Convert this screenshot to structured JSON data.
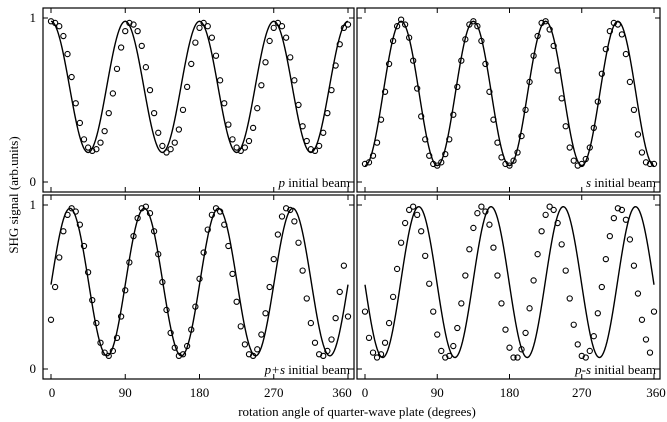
{
  "figure": {
    "ylabel": "SHG signal (arb.units)",
    "xlabel": "rotation angle of quarter-wave plate (degrees)"
  },
  "chart_data": [
    {
      "type": "line",
      "label_main": "p",
      "label_rest": " initial beam",
      "xlim": [
        0,
        360
      ],
      "ylim": [
        0,
        1
      ],
      "x_ticks": [
        "",
        "",
        "",
        "",
        ""
      ],
      "y_ticks": [
        "0",
        "1"
      ],
      "fit": {
        "offset": 0.58,
        "amplitude": 0.4,
        "phase_deg": 0
      },
      "series": [
        {
          "x": [
            0,
            5,
            10,
            15,
            20,
            25,
            30,
            35,
            40,
            45,
            50,
            55,
            60,
            65,
            70,
            75,
            80,
            85,
            90,
            95,
            100,
            105,
            110,
            115,
            120,
            125,
            130,
            135,
            140,
            145,
            150,
            155,
            160,
            165,
            170,
            175,
            180,
            185,
            190,
            195,
            200,
            205,
            210,
            215,
            220,
            225,
            230,
            235,
            240,
            245,
            250,
            255,
            260,
            265,
            270,
            275,
            280,
            285,
            290,
            295,
            300,
            305,
            310,
            315,
            320,
            325,
            330,
            335,
            340,
            345,
            350,
            355,
            360
          ],
          "y": [
            0.98,
            0.97,
            0.95,
            0.89,
            0.78,
            0.64,
            0.48,
            0.36,
            0.26,
            0.21,
            0.19,
            0.2,
            0.24,
            0.31,
            0.42,
            0.54,
            0.69,
            0.82,
            0.92,
            0.97,
            0.96,
            0.92,
            0.83,
            0.7,
            0.56,
            0.42,
            0.3,
            0.22,
            0.18,
            0.2,
            0.24,
            0.32,
            0.44,
            0.58,
            0.72,
            0.85,
            0.94,
            0.97,
            0.95,
            0.88,
            0.77,
            0.62,
            0.48,
            0.35,
            0.26,
            0.21,
            0.19,
            0.21,
            0.25,
            0.33,
            0.45,
            0.59,
            0.73,
            0.86,
            0.94,
            0.97,
            0.95,
            0.88,
            0.76,
            0.62,
            0.47,
            0.34,
            0.25,
            0.2,
            0.19,
            0.22,
            0.3,
            0.42,
            0.56,
            0.71,
            0.84,
            0.94,
            0.96
          ]
        }
      ]
    },
    {
      "type": "line",
      "label_main": "s",
      "label_rest": " initial beam",
      "xlim": [
        0,
        360
      ],
      "ylim": [
        0,
        1
      ],
      "x_ticks": [
        "",
        "",
        "",
        "",
        ""
      ],
      "y_ticks": [
        "",
        ""
      ],
      "fit": {
        "offset": 0.54,
        "amplitude": 0.44,
        "phase_deg": 45
      },
      "series": [
        {
          "x": [
            0,
            5,
            10,
            15,
            20,
            25,
            30,
            35,
            40,
            45,
            50,
            55,
            60,
            65,
            70,
            75,
            80,
            85,
            90,
            95,
            100,
            105,
            110,
            115,
            120,
            125,
            130,
            135,
            140,
            145,
            150,
            155,
            160,
            165,
            170,
            175,
            180,
            185,
            190,
            195,
            200,
            205,
            210,
            215,
            220,
            225,
            230,
            235,
            240,
            245,
            250,
            255,
            260,
            265,
            270,
            275,
            280,
            285,
            290,
            295,
            300,
            305,
            310,
            315,
            320,
            325,
            330,
            335,
            340,
            345,
            350,
            355,
            360
          ],
          "y": [
            0.11,
            0.12,
            0.16,
            0.24,
            0.38,
            0.55,
            0.72,
            0.86,
            0.95,
            0.99,
            0.96,
            0.88,
            0.74,
            0.57,
            0.4,
            0.26,
            0.16,
            0.11,
            0.1,
            0.12,
            0.17,
            0.26,
            0.41,
            0.58,
            0.74,
            0.87,
            0.96,
            0.98,
            0.95,
            0.86,
            0.72,
            0.55,
            0.38,
            0.24,
            0.15,
            0.11,
            0.1,
            0.13,
            0.18,
            0.28,
            0.44,
            0.61,
            0.77,
            0.89,
            0.97,
            0.98,
            0.93,
            0.83,
            0.68,
            0.51,
            0.34,
            0.21,
            0.13,
            0.1,
            0.11,
            0.14,
            0.21,
            0.33,
            0.49,
            0.66,
            0.81,
            0.92,
            0.97,
            0.96,
            0.9,
            0.78,
            0.61,
            0.44,
            0.29,
            0.18,
            0.12,
            0.11,
            0.11
          ]
        }
      ]
    },
    {
      "type": "line",
      "label_main": "p+s",
      "label_rest": " initial beam",
      "xlim": [
        0,
        360
      ],
      "ylim": [
        0,
        1
      ],
      "x_ticks": [
        "0",
        "90",
        "180",
        "270",
        "360"
      ],
      "y_ticks": [
        "0",
        "1"
      ],
      "fit": {
        "offset": 0.53,
        "amplitude": 0.45,
        "phase_deg": 23
      },
      "series": [
        {
          "x": [
            0,
            5,
            10,
            15,
            20,
            25,
            30,
            35,
            40,
            45,
            50,
            55,
            60,
            65,
            70,
            75,
            80,
            85,
            90,
            95,
            100,
            105,
            110,
            115,
            120,
            125,
            130,
            135,
            140,
            145,
            150,
            155,
            160,
            165,
            170,
            175,
            180,
            185,
            190,
            195,
            200,
            205,
            210,
            215,
            220,
            225,
            230,
            235,
            240,
            245,
            250,
            255,
            260,
            265,
            270,
            275,
            280,
            285,
            290,
            295,
            300,
            305,
            310,
            315,
            320,
            325,
            330,
            335,
            340,
            345,
            350,
            355,
            360
          ],
          "y": [
            0.3,
            0.5,
            0.68,
            0.84,
            0.94,
            0.98,
            0.96,
            0.88,
            0.75,
            0.59,
            0.42,
            0.28,
            0.16,
            0.1,
            0.08,
            0.11,
            0.19,
            0.32,
            0.48,
            0.65,
            0.81,
            0.92,
            0.98,
            0.99,
            0.95,
            0.84,
            0.7,
            0.53,
            0.36,
            0.22,
            0.13,
            0.08,
            0.09,
            0.14,
            0.24,
            0.38,
            0.55,
            0.71,
            0.85,
            0.94,
            0.98,
            0.96,
            0.88,
            0.75,
            0.58,
            0.41,
            0.26,
            0.15,
            0.09,
            0.08,
            0.12,
            0.21,
            0.34,
            0.5,
            0.67,
            0.82,
            0.93,
            0.98,
            0.97,
            0.9,
            0.77,
            0.6,
            0.43,
            0.28,
            0.16,
            0.09,
            0.08,
            0.11,
            0.18,
            0.31,
            0.47,
            0.63,
            0.32
          ]
        }
      ]
    },
    {
      "type": "line",
      "label_main": "p-s",
      "label_rest": " initial beam",
      "xlim": [
        0,
        360
      ],
      "ylim": [
        0,
        1
      ],
      "x_ticks": [
        "0",
        "90",
        "180",
        "270",
        "360"
      ],
      "y_ticks": [
        "",
        ""
      ],
      "fit": {
        "offset": 0.53,
        "amplitude": 0.46,
        "phase_deg": 67
      },
      "series": [
        {
          "x": [
            0,
            5,
            10,
            15,
            20,
            25,
            30,
            35,
            40,
            45,
            50,
            55,
            60,
            65,
            70,
            75,
            80,
            85,
            90,
            95,
            100,
            105,
            110,
            115,
            120,
            125,
            130,
            135,
            140,
            145,
            150,
            155,
            160,
            165,
            170,
            175,
            180,
            185,
            190,
            195,
            200,
            205,
            210,
            215,
            220,
            225,
            230,
            235,
            240,
            245,
            250,
            255,
            260,
            265,
            270,
            275,
            280,
            285,
            290,
            295,
            300,
            305,
            310,
            315,
            320,
            325,
            330,
            335,
            340,
            345,
            350,
            355,
            360
          ],
          "y": [
            0.35,
            0.19,
            0.1,
            0.07,
            0.09,
            0.16,
            0.28,
            0.44,
            0.61,
            0.77,
            0.89,
            0.97,
            0.99,
            0.94,
            0.84,
            0.69,
            0.52,
            0.35,
            0.21,
            0.11,
            0.07,
            0.08,
            0.14,
            0.25,
            0.4,
            0.57,
            0.73,
            0.86,
            0.95,
            0.99,
            0.96,
            0.88,
            0.74,
            0.57,
            0.4,
            0.24,
            0.13,
            0.07,
            0.07,
            0.12,
            0.22,
            0.37,
            0.54,
            0.7,
            0.84,
            0.94,
            0.99,
            0.97,
            0.89,
            0.76,
            0.6,
            0.43,
            0.27,
            0.15,
            0.08,
            0.07,
            0.11,
            0.2,
            0.34,
            0.5,
            0.67,
            0.81,
            0.92,
            0.98,
            0.97,
            0.91,
            0.79,
            0.63,
            0.46,
            0.3,
            0.18,
            0.1,
            0.35
          ]
        }
      ]
    }
  ]
}
